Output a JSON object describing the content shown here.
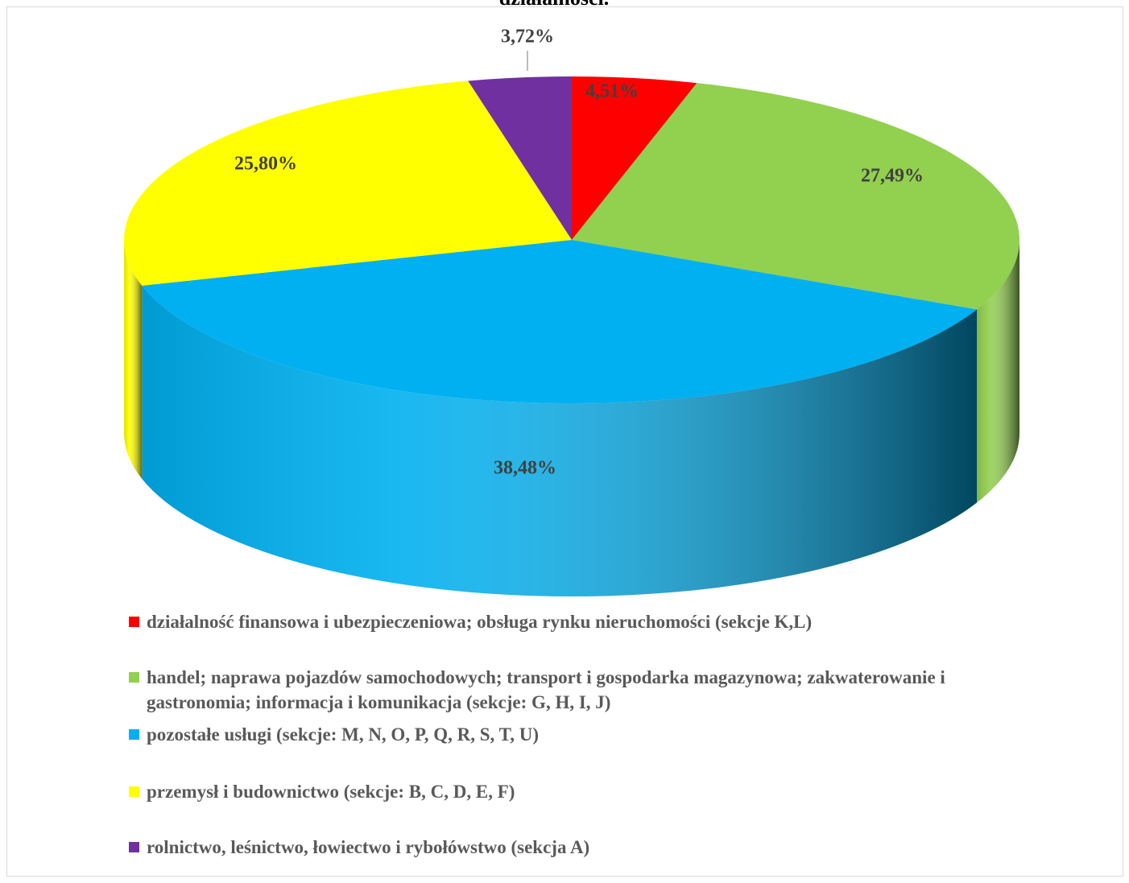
{
  "chart_data": {
    "type": "pie3d",
    "title": "działalności.",
    "categories": [
      "działalność finansowa i ubezpieczeniowa; obsługa rynku nieruchomości (sekcje K,L)",
      "handel; naprawa pojazdów samochodowych; transport i gospodarka magazynowa; zakwaterowanie i gastronomia; informacja i komunikacja (sekcje: G, H, I, J)",
      "pozostałe usługi (sekcje: M, N, O, P, Q, R, S, T, U)",
      "przemysł i budownictwo (sekcje: B, C, D, E, F)",
      "rolnictwo, leśnictwo, łowiectwo i rybołówstwo (sekcja A)"
    ],
    "values": [
      4.51,
      27.49,
      38.48,
      25.8,
      3.72
    ],
    "value_labels": [
      "4,51%",
      "27,49%",
      "38,48%",
      "25,80%",
      "3,72%"
    ],
    "colors": [
      "#ff0000",
      "#92d050",
      "#00b0f0",
      "#ffff00",
      "#7030a0"
    ],
    "legend": "bottom"
  }
}
